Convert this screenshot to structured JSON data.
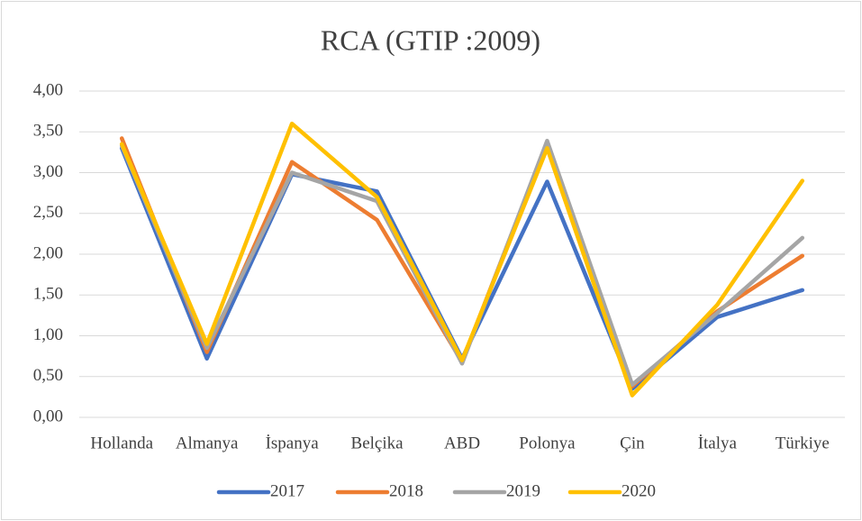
{
  "chart_data": {
    "type": "line",
    "title": "RCA (GTIP :2009)",
    "categories": [
      "Hollanda",
      "Almanya",
      "İspanya",
      "Belçika",
      "ABD",
      "Polonya",
      "Çin",
      "İtalya",
      "Türkiye"
    ],
    "series": [
      {
        "name": "2017",
        "color": "#4472c4",
        "values": [
          3.3,
          0.72,
          2.98,
          2.77,
          0.72,
          2.89,
          0.35,
          1.23,
          1.56
        ]
      },
      {
        "name": "2018",
        "color": "#ed7d31",
        "values": [
          3.42,
          0.8,
          3.13,
          2.42,
          0.68,
          3.37,
          0.38,
          1.3,
          1.98
        ]
      },
      {
        "name": "2019",
        "color": "#a5a5a5",
        "values": [
          3.33,
          0.85,
          3.0,
          2.65,
          0.66,
          3.39,
          0.4,
          1.28,
          2.2
        ]
      },
      {
        "name": "2020",
        "color": "#ffc000",
        "values": [
          3.35,
          0.9,
          3.6,
          2.7,
          0.7,
          3.3,
          0.27,
          1.38,
          2.9
        ]
      }
    ],
    "ylim": [
      0,
      4
    ],
    "yticks": [
      {
        "value": 0,
        "label": "0,00"
      },
      {
        "value": 0.5,
        "label": "0,50"
      },
      {
        "value": 1,
        "label": "1,00"
      },
      {
        "value": 1.5,
        "label": "1,50"
      },
      {
        "value": 2,
        "label": "2,00"
      },
      {
        "value": 2.5,
        "label": "2,50"
      },
      {
        "value": 3,
        "label": "3,00"
      },
      {
        "value": 3.5,
        "label": "3,50"
      },
      {
        "value": 4,
        "label": "4,00"
      }
    ],
    "grid": true,
    "legend": "bottom"
  }
}
